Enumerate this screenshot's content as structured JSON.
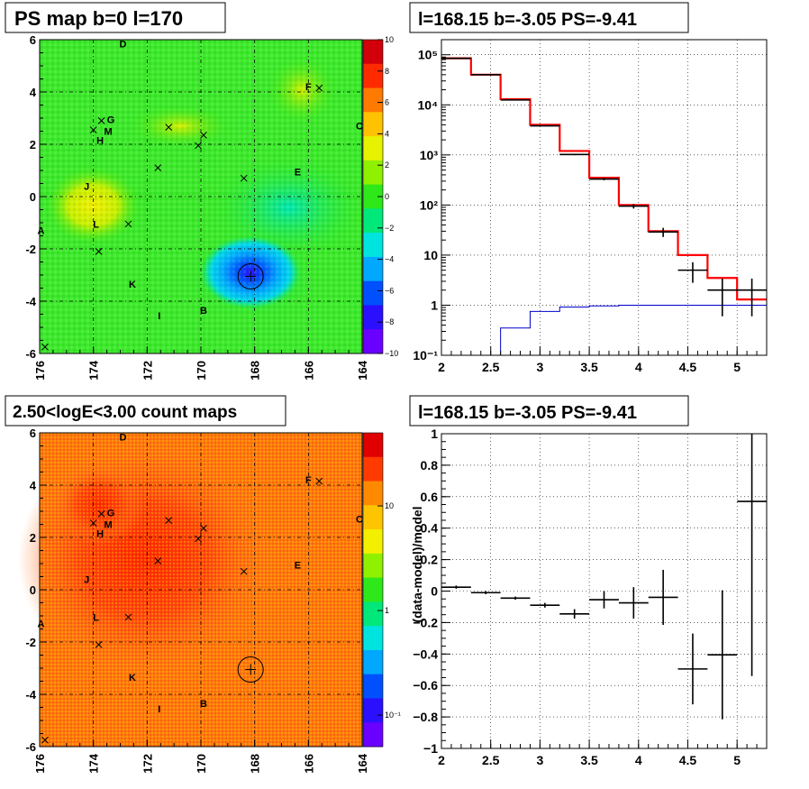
{
  "panels": {
    "ps_map": {
      "title": "PS map b=0 l=170",
      "x_ticks": [
        "176",
        "174",
        "172",
        "170",
        "168",
        "166",
        "164"
      ],
      "y_ticks": [
        "6",
        "4",
        "2",
        "0",
        "-2",
        "-4",
        "-6"
      ],
      "colorbar_ticks": [
        "10",
        "8",
        "6",
        "4",
        "2",
        "0",
        "−2",
        "−4",
        "−6",
        "−8",
        "−10"
      ],
      "colorbar_colors": [
        "#d2000a",
        "#ff2a00",
        "#ff7a00",
        "#ffc200",
        "#e7f200",
        "#8ff000",
        "#2ee81a",
        "#00e87a",
        "#00e4e0",
        "#00a8ff",
        "#0050ff",
        "#2a10ff",
        "#6a00ff"
      ]
    },
    "count_map": {
      "title": "2.50<logE<3.00 count maps",
      "x_ticks": [
        "176",
        "174",
        "172",
        "170",
        "168",
        "166",
        "164"
      ],
      "y_ticks": [
        "6",
        "4",
        "2",
        "0",
        "-2",
        "-4",
        "-6"
      ],
      "colorbar_ticks": [
        "10",
        "1",
        "10⁻¹"
      ],
      "colorbar_colors": [
        "#e00000",
        "#ff3a00",
        "#ff8a00",
        "#ffc400",
        "#f2ef00",
        "#8ff000",
        "#2ee81a",
        "#00e87a",
        "#00e4e0",
        "#00a8ff",
        "#0050ff",
        "#2a10ff",
        "#6a00ff"
      ]
    },
    "spectrum": {
      "title": "l=168.15 b=-3.05 PS=-9.41"
    },
    "residual": {
      "title": "l=168.15 b=-3.05 PS=-9.41",
      "ylabel": "(data-model)/model"
    }
  },
  "sources": [
    {
      "label": "A",
      "l": 175.95,
      "b": -1.3
    },
    {
      "label": "B",
      "l": 169.9,
      "b": -4.35
    },
    {
      "label": "C",
      "l": 164.1,
      "b": 2.7
    },
    {
      "label": "D",
      "l": 172.9,
      "b": 5.85
    },
    {
      "label": "E",
      "l": 166.4,
      "b": 0.95
    },
    {
      "label": "F",
      "l": 166.0,
      "b": 4.2
    },
    {
      "label": "G",
      "l": 173.35,
      "b": 2.95
    },
    {
      "label": "H",
      "l": 173.75,
      "b": 2.15
    },
    {
      "label": "I",
      "l": 171.55,
      "b": -4.55
    },
    {
      "label": "J",
      "l": 174.25,
      "b": 0.4
    },
    {
      "label": "K",
      "l": 172.55,
      "b": -3.35
    },
    {
      "label": "L",
      "l": 173.9,
      "b": -1.05
    },
    {
      "label": "M",
      "l": 173.45,
      "b": 2.5
    }
  ],
  "crosses": [
    {
      "l": 174.0,
      "b": 2.55
    },
    {
      "l": 173.7,
      "b": 2.9
    },
    {
      "l": 171.2,
      "b": 2.65
    },
    {
      "l": 169.9,
      "b": 2.35
    },
    {
      "l": 170.1,
      "b": 1.95
    },
    {
      "l": 171.6,
      "b": 1.1
    },
    {
      "l": 168.4,
      "b": 0.7
    },
    {
      "l": 165.6,
      "b": 4.15
    },
    {
      "l": 172.7,
      "b": -1.05
    },
    {
      "l": 173.8,
      "b": -2.1
    },
    {
      "l": 175.8,
      "b": -5.75
    }
  ],
  "ps_circle": {
    "l": 168.15,
    "b": -3.05
  },
  "chart_data": [
    {
      "type": "heatmap",
      "title": "PS map b=0 l=170",
      "xlim": [
        176,
        164
      ],
      "ylim": [
        -6,
        6
      ],
      "zlim": [
        -10,
        10
      ],
      "features": [
        {
          "l": 168.15,
          "b": -3.05,
          "value": -9.4
        },
        {
          "l": 174.0,
          "b": 0.0,
          "value": 4.5
        },
        {
          "l": 166.0,
          "b": 4.0,
          "value": 4.0
        }
      ]
    },
    {
      "type": "heatmap",
      "title": "2.50<logE<3.00 count maps",
      "xlim": [
        176,
        164
      ],
      "ylim": [
        -6,
        6
      ],
      "z_scale": "log",
      "zlim": [
        0.05,
        50
      ]
    },
    {
      "type": "line",
      "title": "l=168.15 b=-3.05 PS=-9.41",
      "x_scale": "linear",
      "y_scale": "log",
      "xlim": [
        2.0,
        5.3
      ],
      "ylim": [
        0.1,
        200000
      ],
      "x_ticks": [
        "2",
        "2.5",
        "3",
        "3.5",
        "4",
        "4.5",
        "5"
      ],
      "y_ticks": [
        "10⁻¹",
        "1",
        "10",
        "10²",
        "10³",
        "10⁴",
        "10⁵"
      ],
      "bin_edges": [
        2.0,
        2.3,
        2.6,
        2.9,
        3.2,
        3.5,
        3.8,
        4.1,
        4.4,
        4.7,
        5.0,
        5.3
      ],
      "series": [
        {
          "values": [
            85000,
            40000,
            13000,
            4000,
            1200,
            350,
            100,
            30,
            10,
            3.5,
            1.3
          ]
        },
        {
          "values": [
            0.1,
            0.1,
            0.35,
            0.75,
            0.92,
            0.97,
            1.0,
            1.0,
            1.0,
            1.0,
            1.0
          ]
        }
      ],
      "points": [
        {
          "x": 2.15,
          "y": 85000,
          "yerr_lo": 300,
          "yerr_hi": 300,
          "xerr": 0.15
        },
        {
          "x": 2.45,
          "y": 40000,
          "yerr_lo": 200,
          "yerr_hi": 200,
          "xerr": 0.15
        },
        {
          "x": 2.75,
          "y": 12500,
          "yerr_lo": 110,
          "yerr_hi": 110,
          "xerr": 0.15
        },
        {
          "x": 3.05,
          "y": 3800,
          "yerr_lo": 60,
          "yerr_hi": 60,
          "xerr": 0.15
        },
        {
          "x": 3.35,
          "y": 1020,
          "yerr_lo": 32,
          "yerr_hi": 32,
          "xerr": 0.15
        },
        {
          "x": 3.65,
          "y": 330,
          "yerr_lo": 18,
          "yerr_hi": 18,
          "xerr": 0.15
        },
        {
          "x": 3.95,
          "y": 95,
          "yerr_lo": 10,
          "yerr_hi": 10,
          "xerr": 0.15
        },
        {
          "x": 4.25,
          "y": 29,
          "yerr_lo": 6,
          "yerr_hi": 6,
          "xerr": 0.15
        },
        {
          "x": 4.55,
          "y": 5,
          "yerr_lo": 2.2,
          "yerr_hi": 2.2,
          "xerr": 0.15
        },
        {
          "x": 4.85,
          "y": 2,
          "yerr_lo": 1.4,
          "yerr_hi": 1.4,
          "xerr": 0.15
        },
        {
          "x": 5.15,
          "y": 2,
          "yerr_lo": 1.4,
          "yerr_hi": 1.4,
          "xerr": 0.15
        }
      ]
    },
    {
      "type": "scatter",
      "title": "l=168.15 b=-3.05 PS=-9.41",
      "ylabel": "(data-model)/model",
      "xlim": [
        2.0,
        5.3
      ],
      "ylim": [
        -1,
        1
      ],
      "x_ticks": [
        "2",
        "2.5",
        "3",
        "3.5",
        "4",
        "4.5",
        "5"
      ],
      "y_ticks": [
        "1",
        "0.8",
        "0.6",
        "0.4",
        "0.2",
        "0",
        "−0.2",
        "−0.4",
        "−0.6",
        "−0.8",
        "−1"
      ],
      "points": [
        {
          "x": 2.15,
          "y": 0.025,
          "yerr": 0.01,
          "xerr": 0.15
        },
        {
          "x": 2.45,
          "y": -0.01,
          "yerr": 0.01,
          "xerr": 0.15
        },
        {
          "x": 2.75,
          "y": -0.045,
          "yerr": 0.01,
          "xerr": 0.15
        },
        {
          "x": 3.05,
          "y": -0.09,
          "yerr": 0.015,
          "xerr": 0.15
        },
        {
          "x": 3.35,
          "y": -0.145,
          "yerr": 0.03,
          "xerr": 0.15
        },
        {
          "x": 3.65,
          "y": -0.055,
          "yerr": 0.055,
          "xerr": 0.15
        },
        {
          "x": 3.95,
          "y": -0.075,
          "yerr": 0.1,
          "xerr": 0.15
        },
        {
          "x": 4.25,
          "y": -0.04,
          "yerr": 0.175,
          "xerr": 0.15
        },
        {
          "x": 4.55,
          "y": -0.495,
          "yerr": 0.225,
          "xerr": 0.15
        },
        {
          "x": 4.85,
          "y": -0.405,
          "yerr": 0.41,
          "xerr": 0.15
        },
        {
          "x": 5.15,
          "y": 0.57,
          "yerr": 1.11,
          "xerr": 0.15
        }
      ]
    }
  ]
}
